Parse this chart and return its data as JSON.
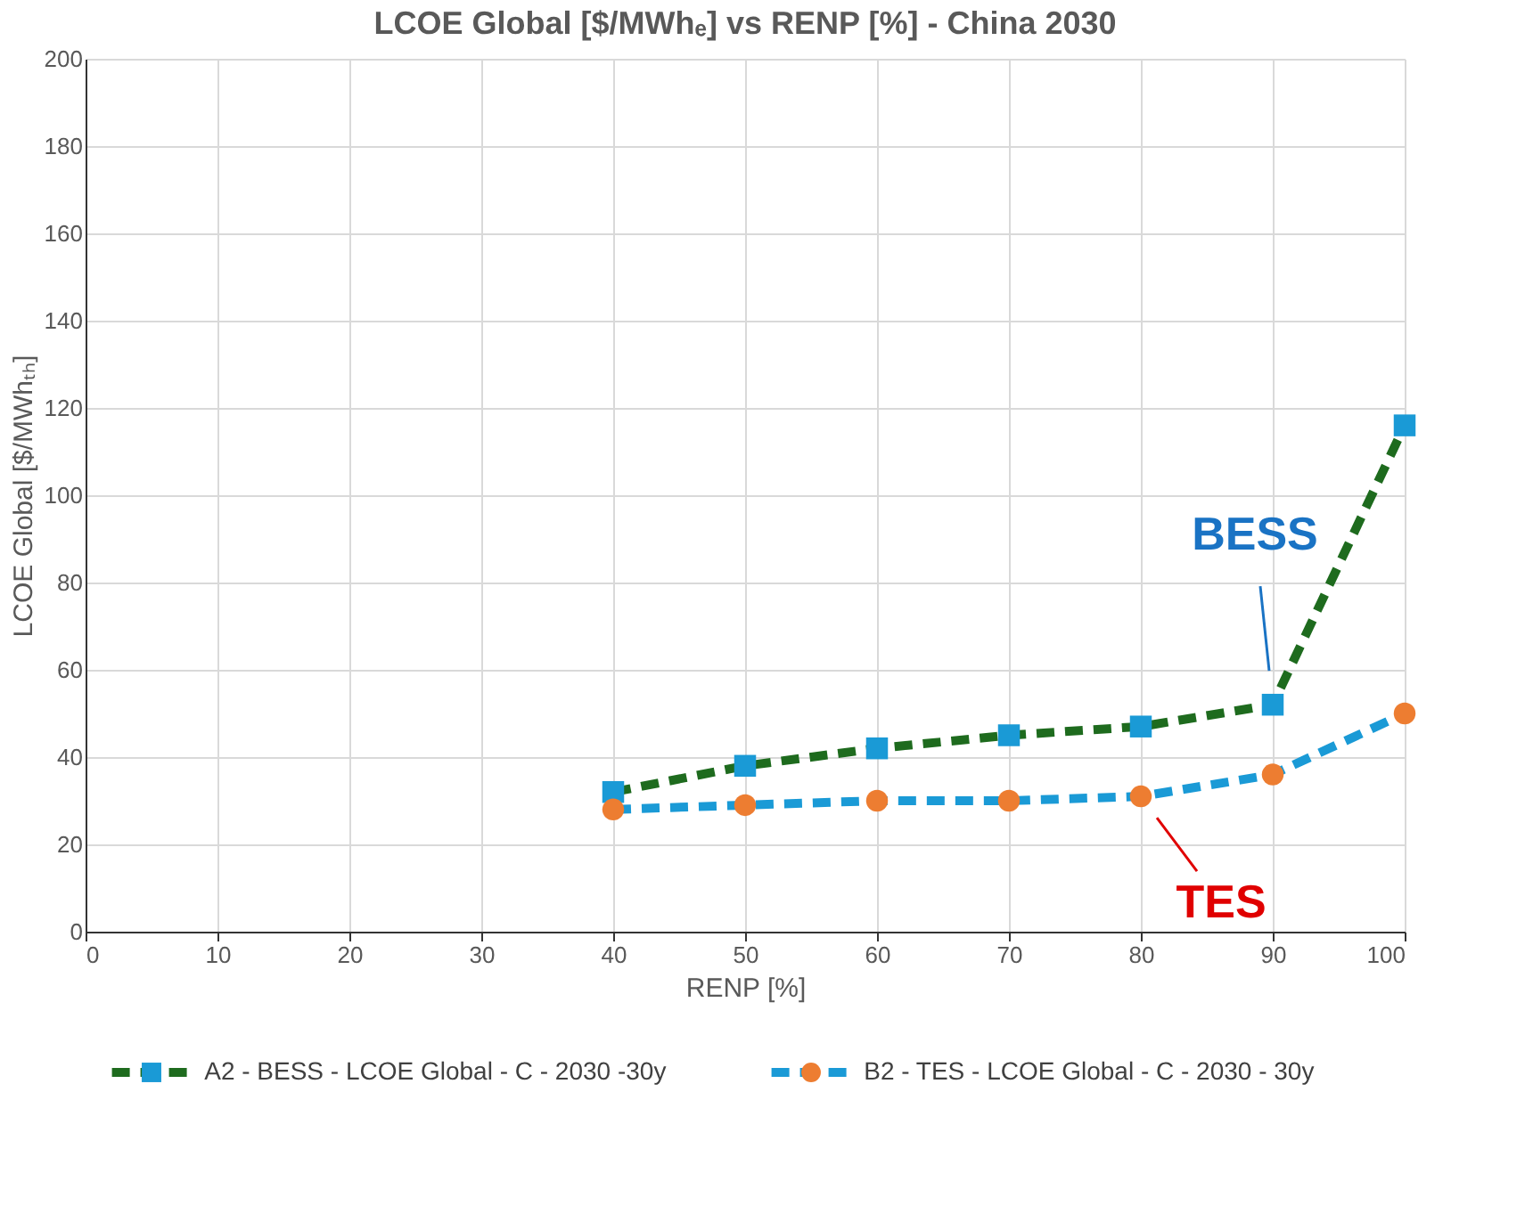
{
  "chart_data": {
    "type": "line",
    "title": "LCOE Global [$/MWhₑ] vs RENP [%] - China 2030",
    "xlabel": "RENP [%]",
    "ylabel": "LCOE Global [$/MWhₜₕ]",
    "x": [
      40,
      50,
      60,
      70,
      80,
      90,
      100
    ],
    "series": [
      {
        "name": "A2 - BESS - LCOE Global - C - 2030 -30y",
        "color": "#1e6b1e",
        "colors": [
          "#1a9ad6",
          "#1a9ad6",
          "#1a9ad6",
          "#1a9ad6",
          "#1a9ad6",
          "#1a9ad6",
          "#1a9ad6"
        ],
        "marker": "square",
        "line_style": "dashed",
        "values": [
          32,
          38,
          42,
          45,
          47,
          52,
          116
        ]
      },
      {
        "name": "B2 - TES - LCOE Global - C - 2030 - 30y",
        "color": "#1a9ad6",
        "colors": [
          "#ed7d31",
          "#ed7d31",
          "#ed7d31",
          "#ed7d31",
          "#ed7d31",
          "#ed7d31",
          "#ed7d31"
        ],
        "marker": "circle",
        "line_style": "dashed",
        "values": [
          28,
          29,
          30,
          30,
          31,
          36,
          50
        ]
      }
    ],
    "annotations": [
      "BESS",
      "TES"
    ],
    "xlim": [
      0,
      100
    ],
    "xticks": [
      0,
      10,
      20,
      30,
      40,
      50,
      60,
      70,
      80,
      90,
      100
    ],
    "ylim": [
      0,
      200
    ],
    "yticks": [
      0,
      20,
      40,
      60,
      80,
      100,
      120,
      140,
      160,
      180,
      200
    ],
    "grid": true,
    "legend": "bottom"
  }
}
